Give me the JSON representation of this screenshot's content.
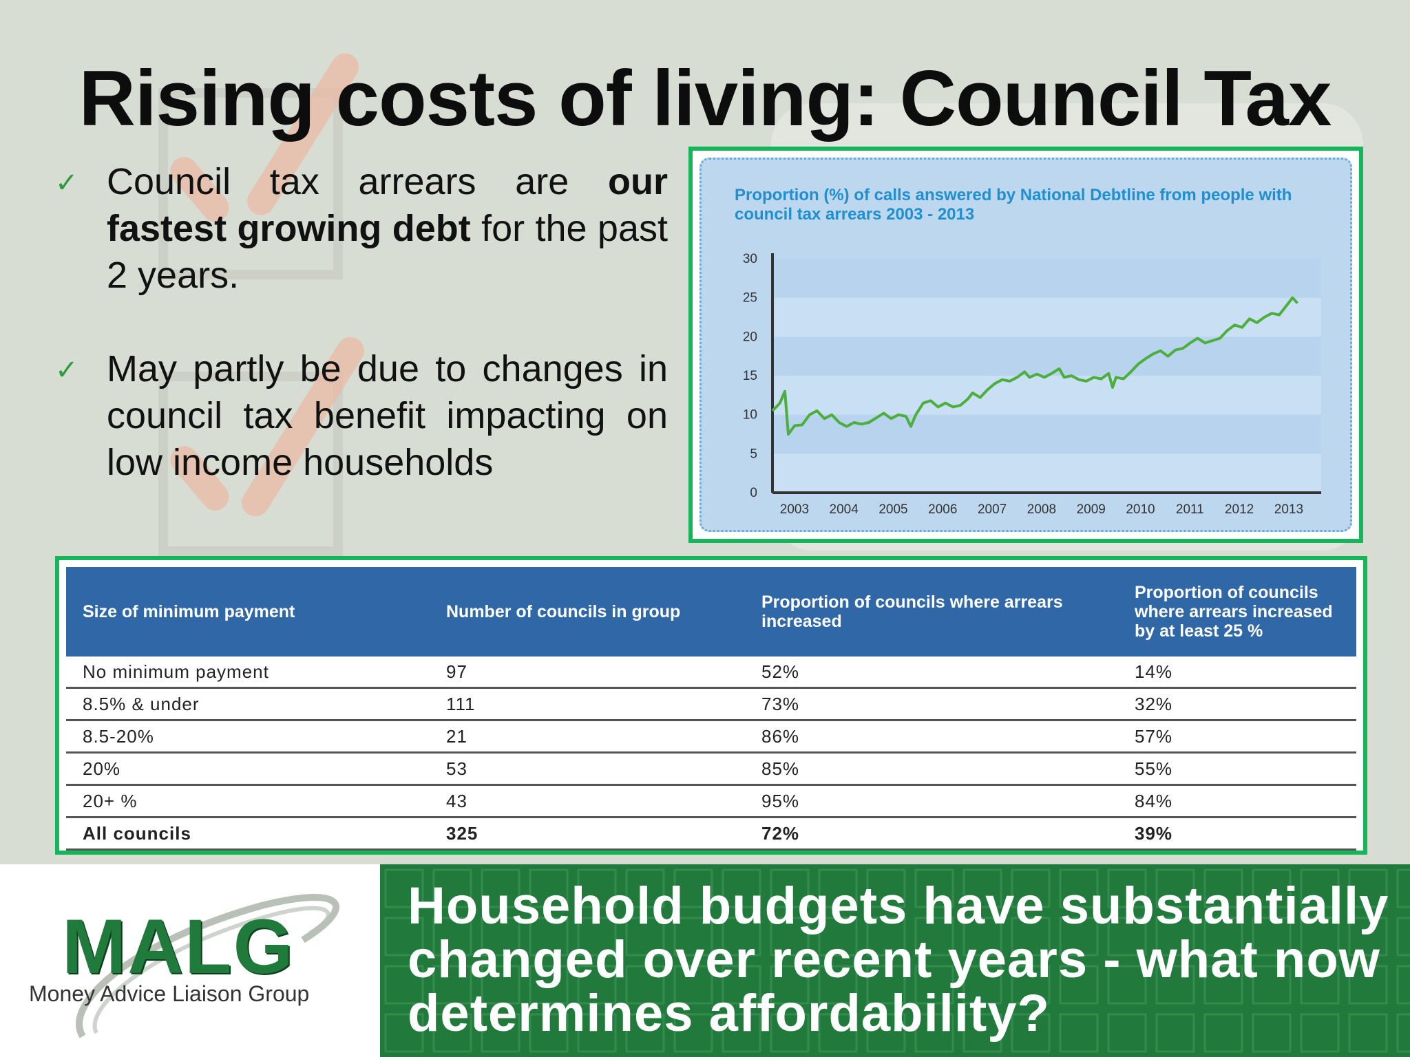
{
  "slide": {
    "title": "Rising costs of living: Council Tax",
    "bullets": [
      {
        "check": "✓",
        "pre": "Council tax arrears are ",
        "bold": "our fastest growing debt",
        "post": " for the past 2 years."
      },
      {
        "check": "✓",
        "pre": "May partly be due to changes in council tax benefit impacting on low income households",
        "bold": "",
        "post": ""
      }
    ]
  },
  "chart_data": {
    "type": "line",
    "title": "Proportion (%) of calls answered by National Debtline from people with council tax arrears 2003 - 2013",
    "xlabel": "",
    "ylabel": "",
    "ylim": [
      0,
      30
    ],
    "yticks": [
      "0",
      "5",
      "10",
      "15",
      "20",
      "25",
      "30"
    ],
    "xticks": [
      "2003",
      "2004",
      "2005",
      "2006",
      "2007",
      "2008",
      "2009",
      "2010",
      "2011",
      "2012",
      "2013"
    ],
    "xlim": [
      2003,
      2014.1
    ],
    "grid": "horizontal bands",
    "line_color": "#4caf3d",
    "points": [
      [
        2003.0,
        10.5
      ],
      [
        2003.15,
        11.5
      ],
      [
        2003.25,
        13.0
      ],
      [
        2003.32,
        7.5
      ],
      [
        2003.45,
        8.6
      ],
      [
        2003.6,
        8.7
      ],
      [
        2003.75,
        10.0
      ],
      [
        2003.9,
        10.5
      ],
      [
        2004.05,
        9.5
      ],
      [
        2004.2,
        10.0
      ],
      [
        2004.35,
        9.0
      ],
      [
        2004.5,
        8.5
      ],
      [
        2004.65,
        9.0
      ],
      [
        2004.8,
        8.8
      ],
      [
        2004.95,
        9.0
      ],
      [
        2005.1,
        9.6
      ],
      [
        2005.25,
        10.2
      ],
      [
        2005.4,
        9.5
      ],
      [
        2005.55,
        10.0
      ],
      [
        2005.7,
        9.8
      ],
      [
        2005.8,
        8.5
      ],
      [
        2005.9,
        10.0
      ],
      [
        2006.05,
        11.5
      ],
      [
        2006.2,
        11.8
      ],
      [
        2006.35,
        11.0
      ],
      [
        2006.5,
        11.5
      ],
      [
        2006.65,
        11.0
      ],
      [
        2006.8,
        11.2
      ],
      [
        2006.95,
        12.0
      ],
      [
        2007.05,
        12.8
      ],
      [
        2007.2,
        12.2
      ],
      [
        2007.35,
        13.2
      ],
      [
        2007.5,
        14.0
      ],
      [
        2007.65,
        14.5
      ],
      [
        2007.8,
        14.3
      ],
      [
        2007.95,
        14.8
      ],
      [
        2008.1,
        15.5
      ],
      [
        2008.2,
        14.8
      ],
      [
        2008.35,
        15.2
      ],
      [
        2008.5,
        14.8
      ],
      [
        2008.65,
        15.3
      ],
      [
        2008.8,
        15.9
      ],
      [
        2008.9,
        14.8
      ],
      [
        2009.05,
        15.0
      ],
      [
        2009.2,
        14.5
      ],
      [
        2009.35,
        14.3
      ],
      [
        2009.5,
        14.8
      ],
      [
        2009.65,
        14.6
      ],
      [
        2009.8,
        15.3
      ],
      [
        2009.88,
        13.5
      ],
      [
        2009.95,
        14.8
      ],
      [
        2010.1,
        14.6
      ],
      [
        2010.25,
        15.5
      ],
      [
        2010.4,
        16.5
      ],
      [
        2010.55,
        17.2
      ],
      [
        2010.7,
        17.8
      ],
      [
        2010.85,
        18.2
      ],
      [
        2011.0,
        17.5
      ],
      [
        2011.15,
        18.3
      ],
      [
        2011.3,
        18.5
      ],
      [
        2011.45,
        19.2
      ],
      [
        2011.6,
        19.8
      ],
      [
        2011.75,
        19.2
      ],
      [
        2011.9,
        19.5
      ],
      [
        2012.05,
        19.8
      ],
      [
        2012.2,
        20.8
      ],
      [
        2012.35,
        21.5
      ],
      [
        2012.5,
        21.2
      ],
      [
        2012.65,
        22.3
      ],
      [
        2012.8,
        21.8
      ],
      [
        2012.95,
        22.5
      ],
      [
        2013.1,
        23.0
      ],
      [
        2013.25,
        22.8
      ],
      [
        2013.4,
        24.0
      ],
      [
        2013.52,
        25.0
      ],
      [
        2013.62,
        24.3
      ]
    ]
  },
  "table": {
    "headers": [
      "Size of minimum payment",
      "Number of councils in group",
      "Proportion of councils where arrears increased",
      "Proportion of councils where arrears increased by at least 25 %"
    ],
    "rows": [
      [
        "No minimum payment",
        "97",
        "52%",
        "14%"
      ],
      [
        "8.5% & under",
        "111",
        "73%",
        "32%"
      ],
      [
        "8.5-20%",
        "21",
        "86%",
        "57%"
      ],
      [
        "20%",
        "53",
        "85%",
        "55%"
      ],
      [
        "20+ %",
        "43",
        "95%",
        "84%"
      ],
      [
        "All councils",
        "325",
        "72%",
        "39%"
      ]
    ]
  },
  "footer": {
    "logo_text": "MALG",
    "logo_subtitle": "Money Advice Liaison Group",
    "tagline": "Household budgets have substantially changed over recent years - what now determines affordability?"
  },
  "colors": {
    "accent_green": "#17b55a",
    "footer_green": "#217a3c",
    "table_header_blue": "#2f67a7",
    "chart_title_blue": "#1f8fcf",
    "chart_bg": "#bdd7ef"
  }
}
